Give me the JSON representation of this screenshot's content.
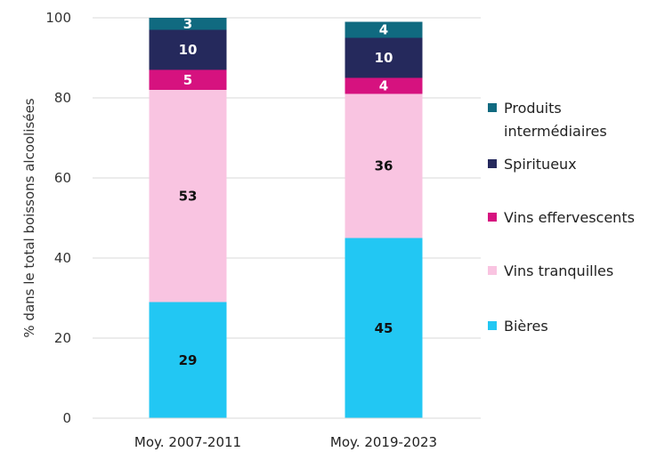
{
  "chart_data": {
    "type": "bar",
    "stacked": true,
    "title": "",
    "xlabel": "",
    "ylabel": "% dans le total boissons alcoolisées",
    "ylim": [
      0,
      100
    ],
    "yticks": [
      "0",
      "20",
      "40",
      "60",
      "80",
      "100"
    ],
    "categories": [
      "Moy. 2007-2011",
      "Moy. 2019-2023"
    ],
    "series": [
      {
        "name": "Bières",
        "color": "#22c7f3",
        "label_color": "#111111",
        "values": [
          29,
          45
        ]
      },
      {
        "name": "Vins tranquilles",
        "color": "#f9c4e1",
        "label_color": "#111111",
        "values": [
          53,
          36
        ]
      },
      {
        "name": "Vins effervescents",
        "color": "#d6127f",
        "label_color": "#ffffff",
        "values": [
          5,
          4
        ]
      },
      {
        "name": "Spiritueux",
        "color": "#25295c",
        "label_color": "#ffffff",
        "values": [
          10,
          10
        ]
      },
      {
        "name": "Produits intermédiaires",
        "color": "#106a80",
        "label_color": "#ffffff",
        "values": [
          3,
          4
        ]
      }
    ],
    "legend": [
      {
        "series": 4,
        "lines": [
          "Produits",
          "intermédiaires"
        ]
      },
      {
        "series": 3,
        "lines": [
          "Spiritueux"
        ]
      },
      {
        "series": 2,
        "lines": [
          "Vins effervescents"
        ]
      },
      {
        "series": 1,
        "lines": [
          "Vins tranquilles"
        ]
      },
      {
        "series": 0,
        "lines": [
          "Bières"
        ]
      }
    ],
    "legend_position": "right",
    "grid": true
  }
}
